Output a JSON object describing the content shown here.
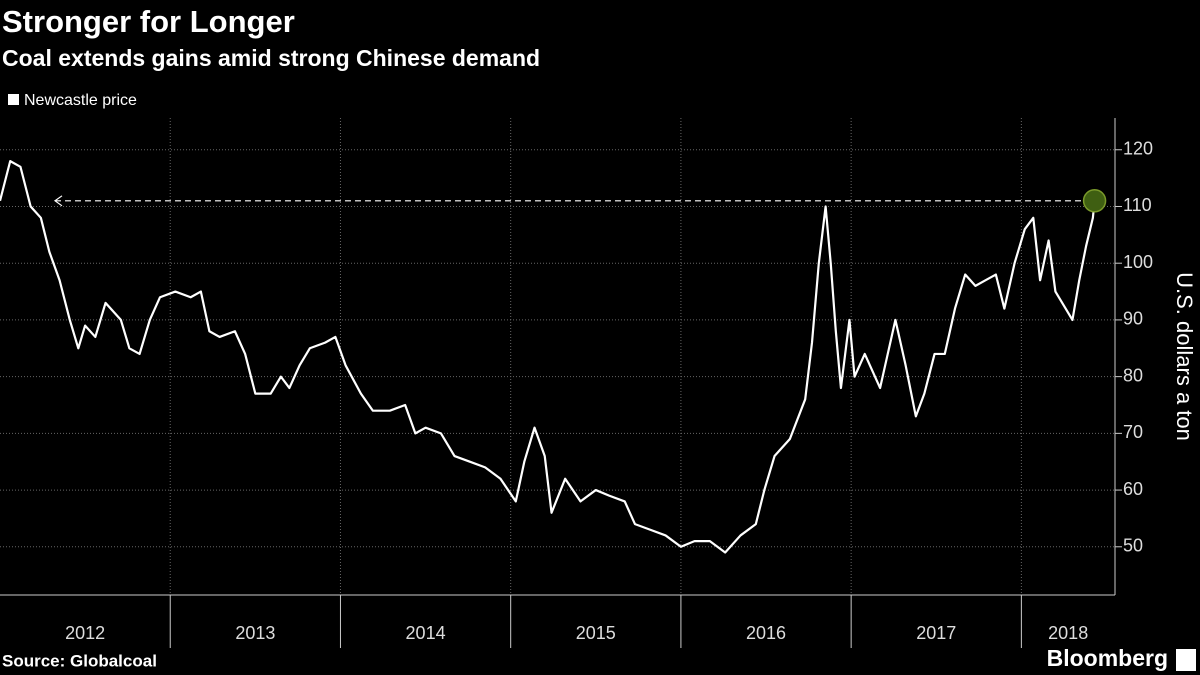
{
  "chart_data": {
    "type": "line",
    "title": "Stronger for Longer",
    "subtitle": "Coal extends gains amid strong Chinese demand",
    "y_label": "U.S. dollars a ton",
    "source": "Source: Globalcoal",
    "brand": "Bloomberg",
    "legend_position": "top-left",
    "grid": true,
    "highlight_color": "#3f5f12",
    "x": [
      2012.0,
      2012.06,
      2012.12,
      2012.18,
      2012.24,
      2012.29,
      2012.35,
      2012.41,
      2012.46,
      2012.5,
      2012.56,
      2012.62,
      2012.71,
      2012.76,
      2012.82,
      2012.88,
      2012.94,
      2013.03,
      2013.12,
      2013.18,
      2013.23,
      2013.29,
      2013.38,
      2013.44,
      2013.5,
      2013.59,
      2013.65,
      2013.7,
      2013.76,
      2013.82,
      2013.91,
      2013.97,
      2014.03,
      2014.12,
      2014.19,
      2014.29,
      2014.38,
      2014.44,
      2014.5,
      2014.59,
      2014.67,
      2014.76,
      2014.85,
      2014.94,
      2015.03,
      2015.08,
      2015.14,
      2015.2,
      2015.24,
      2015.32,
      2015.41,
      2015.5,
      2015.58,
      2015.67,
      2015.73,
      2015.82,
      2015.91,
      2016.0,
      2016.08,
      2016.17,
      2016.26,
      2016.35,
      2016.44,
      2016.49,
      2016.55,
      2016.64,
      2016.73,
      2016.77,
      2016.81,
      2016.85,
      2016.88,
      2016.91,
      2016.94,
      2016.99,
      2017.02,
      2017.08,
      2017.17,
      2017.26,
      2017.32,
      2017.38,
      2017.43,
      2017.49,
      2017.55,
      2017.61,
      2017.67,
      2017.73,
      2017.79,
      2017.85,
      2017.9,
      2017.96,
      2018.02,
      2018.07,
      2018.11,
      2018.16,
      2018.2,
      2018.26,
      2018.3,
      2018.34,
      2018.38,
      2018.42,
      2018.43
    ],
    "series": [
      {
        "name": "Newcastle price",
        "color": "#ffffff",
        "values": [
          111,
          118,
          117,
          110,
          108,
          102,
          97,
          90,
          85,
          89,
          87,
          93,
          90,
          85,
          84,
          90,
          94,
          95,
          94,
          95,
          88,
          87,
          88,
          84,
          77,
          77,
          80,
          78,
          82,
          85,
          86,
          87,
          82,
          77,
          74,
          74,
          75,
          70,
          71,
          70,
          66,
          65,
          64,
          62,
          58,
          65,
          71,
          66,
          56,
          62,
          58,
          60,
          59,
          58,
          54,
          53,
          52,
          50,
          51,
          51,
          49,
          52,
          54,
          60,
          66,
          69,
          76,
          86,
          100,
          110,
          100,
          88,
          78,
          90,
          80,
          84,
          78,
          90,
          82,
          73,
          77,
          84,
          84,
          92,
          98,
          96,
          97,
          98,
          92,
          100,
          106,
          108,
          97,
          104,
          95,
          92,
          90,
          97,
          103,
          108,
          111
        ]
      }
    ],
    "xlim": [
      2012,
      2018.55
    ],
    "xticks": [
      {
        "value": 2012,
        "label": "2012"
      },
      {
        "value": 2013,
        "label": "2013"
      },
      {
        "value": 2014,
        "label": "2014"
      },
      {
        "value": 2015,
        "label": "2015"
      },
      {
        "value": 2016,
        "label": "2016"
      },
      {
        "value": 2017,
        "label": "2017"
      },
      {
        "value": 2018,
        "label": "2018"
      }
    ],
    "ylim": [
      41.5,
      125.6
    ],
    "yticks": [
      50,
      60,
      70,
      80,
      90,
      100,
      110,
      120
    ]
  }
}
